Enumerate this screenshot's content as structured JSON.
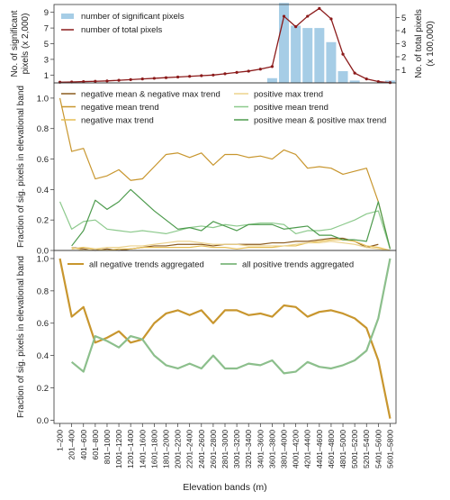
{
  "chart_data": [
    {
      "type": "bar",
      "panel": "top",
      "categories": [
        "1-200",
        "201-400",
        "401-600",
        "601-800",
        "801-1000",
        "1001-1200",
        "1201-1400",
        "1401-1600",
        "1601-1800",
        "1801-2000",
        "2001-2200",
        "2201-2400",
        "2401-2600",
        "2601-2800",
        "2801-3000",
        "3001-3200",
        "3201-3400",
        "3401-3600",
        "3601-3800",
        "3801-4000",
        "4001-4200",
        "4201-4400",
        "4401-4600",
        "4601-4800",
        "4801-5000",
        "5001-5200",
        "5201-5400",
        "5401-5600",
        "5601-5800"
      ],
      "ylabel": "No. of significant pixels (x 2,000)",
      "y2label": "No. of total pixels (x 100,000)",
      "ylim": [
        0,
        10
      ],
      "y2lim": [
        0,
        6
      ],
      "yticks": [
        1,
        3,
        5,
        7,
        9
      ],
      "y2ticks": [
        1,
        2,
        3,
        4,
        5
      ],
      "series": [
        {
          "name": "number of significant pixels",
          "kind": "bar",
          "axis": "left",
          "color": "#a6cde6",
          "values": [
            0,
            0.05,
            0.05,
            0.05,
            0.05,
            0.05,
            0.05,
            0.05,
            0.05,
            0.05,
            0.05,
            0.05,
            0.05,
            0.05,
            0.05,
            0.05,
            0.05,
            0.05,
            0.6,
            10.2,
            7.3,
            7.0,
            7.0,
            5.2,
            1.5,
            0.3,
            0.05,
            0.05,
            0.3
          ]
        },
        {
          "name": "number of total pixels",
          "kind": "line",
          "axis": "right",
          "color": "#8b1a1a",
          "values": [
            0.05,
            0.07,
            0.1,
            0.12,
            0.15,
            0.2,
            0.25,
            0.3,
            0.35,
            0.4,
            0.45,
            0.5,
            0.55,
            0.6,
            0.7,
            0.8,
            0.9,
            1.05,
            1.25,
            5.1,
            4.3,
            5.1,
            5.7,
            4.9,
            2.2,
            0.75,
            0.3,
            0.1,
            0.02
          ]
        }
      ]
    },
    {
      "type": "line",
      "panel": "middle",
      "categories": [
        "1-200",
        "201-400",
        "401-600",
        "601-800",
        "801-1000",
        "1001-1200",
        "1201-1400",
        "1401-1600",
        "1601-1800",
        "1801-2000",
        "2001-2200",
        "2201-2400",
        "2401-2600",
        "2601-2800",
        "2801-3000",
        "3001-3200",
        "3201-3400",
        "3401-3600",
        "3601-3800",
        "3801-4000",
        "4001-4200",
        "4201-4400",
        "4401-4600",
        "4601-4800",
        "4801-5000",
        "5001-5200",
        "5201-5400",
        "5401-5600",
        "5601-5800"
      ],
      "ylabel": "Fraction of sig. pixels in elevational band",
      "ylim": [
        0,
        1.1
      ],
      "yticks": [
        0.0,
        0.2,
        0.4,
        0.6,
        0.8,
        1.0
      ],
      "legend_columns": 2,
      "series": [
        {
          "name": "negative mean & negative max trend",
          "color": "#8b5a1e",
          "values": [
            null,
            0.02,
            0.01,
            0.0,
            0.01,
            0.0,
            0.01,
            0.02,
            0.03,
            0.03,
            0.04,
            0.04,
            0.04,
            0.03,
            0.04,
            0.04,
            0.04,
            0.04,
            0.05,
            0.05,
            0.06,
            0.06,
            0.07,
            0.08,
            0.08,
            0.06,
            0.02,
            0.04,
            null
          ]
        },
        {
          "name": "negative mean trend",
          "color": "#c8962e",
          "values": [
            1.0,
            0.65,
            0.67,
            0.47,
            0.49,
            0.53,
            0.46,
            0.47,
            0.55,
            0.63,
            0.64,
            0.61,
            0.64,
            0.56,
            0.63,
            0.63,
            0.61,
            0.62,
            0.6,
            0.66,
            0.63,
            0.54,
            0.55,
            0.54,
            0.5,
            0.52,
            0.54,
            0.32,
            0.01
          ]
        },
        {
          "name": "negative max trend",
          "color": "#e6be55",
          "values": [
            null,
            0.01,
            0.02,
            0.01,
            0.0,
            0.01,
            0.01,
            0.02,
            0.02,
            0.02,
            0.02,
            0.02,
            0.03,
            0.02,
            0.02,
            0.01,
            0.02,
            0.02,
            0.02,
            0.03,
            0.03,
            0.05,
            0.06,
            0.07,
            0.07,
            0.06,
            0.03,
            0.02,
            0.0
          ]
        },
        {
          "name": "positive max trend",
          "color": "#ecd28c",
          "values": [
            null,
            0.02,
            0.0,
            0.01,
            0.02,
            0.02,
            0.03,
            0.03,
            0.04,
            0.05,
            0.06,
            0.06,
            0.05,
            0.04,
            0.04,
            0.04,
            0.03,
            0.03,
            0.03,
            0.03,
            0.04,
            0.05,
            0.05,
            0.06,
            0.05,
            0.04,
            0.02,
            0.01,
            0.0
          ]
        },
        {
          "name": "positive mean trend",
          "color": "#8cc98c",
          "values": [
            0.32,
            0.14,
            0.19,
            0.2,
            0.14,
            0.13,
            0.12,
            0.13,
            0.12,
            0.11,
            0.13,
            0.15,
            0.16,
            0.15,
            0.17,
            0.16,
            0.17,
            0.18,
            0.18,
            0.17,
            0.11,
            0.13,
            0.13,
            0.14,
            0.17,
            0.2,
            0.24,
            0.26,
            0.01
          ]
        },
        {
          "name": "positive mean & positive max trend",
          "color": "#4c9a4c",
          "values": [
            null,
            0.03,
            0.13,
            0.33,
            0.27,
            0.32,
            0.4,
            0.33,
            0.26,
            0.2,
            0.14,
            0.15,
            0.13,
            0.19,
            0.16,
            0.13,
            0.17,
            0.17,
            0.17,
            0.14,
            0.15,
            0.16,
            0.1,
            0.1,
            0.07,
            0.07,
            0.06,
            0.32,
            0.01
          ]
        }
      ]
    },
    {
      "type": "line",
      "panel": "bottom",
      "categories": [
        "1-200",
        "201-400",
        "401-600",
        "601-800",
        "801-1000",
        "1001-1200",
        "1201-1400",
        "1401-1600",
        "1601-1800",
        "1801-2000",
        "2001-2200",
        "2201-2400",
        "2401-2600",
        "2601-2800",
        "2801-3000",
        "3001-3200",
        "3201-3400",
        "3401-3600",
        "3601-3800",
        "3801-4000",
        "4001-4200",
        "4201-4400",
        "4401-4600",
        "4601-4800",
        "4801-5000",
        "5001-5200",
        "5201-5400",
        "5401-5600",
        "5601-5800"
      ],
      "xlabel": "Elevation bands (m)",
      "ylabel": "Fraction of sig. pixels in elevational band",
      "ylim": [
        -0.02,
        1.05
      ],
      "yticks": [
        0.0,
        0.2,
        0.4,
        0.6,
        0.8,
        1.0
      ],
      "series": [
        {
          "name": "all negative trends aggregated",
          "color": "#c8962e",
          "values": [
            1.0,
            0.64,
            0.7,
            0.48,
            0.51,
            0.55,
            0.48,
            0.5,
            0.6,
            0.66,
            0.68,
            0.65,
            0.68,
            0.6,
            0.68,
            0.68,
            0.65,
            0.66,
            0.64,
            0.71,
            0.7,
            0.64,
            0.67,
            0.68,
            0.66,
            0.63,
            0.57,
            0.37,
            0.01
          ]
        },
        {
          "name": "all positive trends aggregated",
          "color": "#8cbf8c",
          "values": [
            null,
            0.36,
            0.3,
            0.52,
            0.49,
            0.45,
            0.52,
            0.5,
            0.4,
            0.34,
            0.32,
            0.35,
            0.32,
            0.4,
            0.32,
            0.32,
            0.35,
            0.34,
            0.37,
            0.29,
            0.3,
            0.36,
            0.33,
            0.32,
            0.34,
            0.37,
            0.43,
            0.63,
            1.0
          ]
        }
      ]
    }
  ]
}
